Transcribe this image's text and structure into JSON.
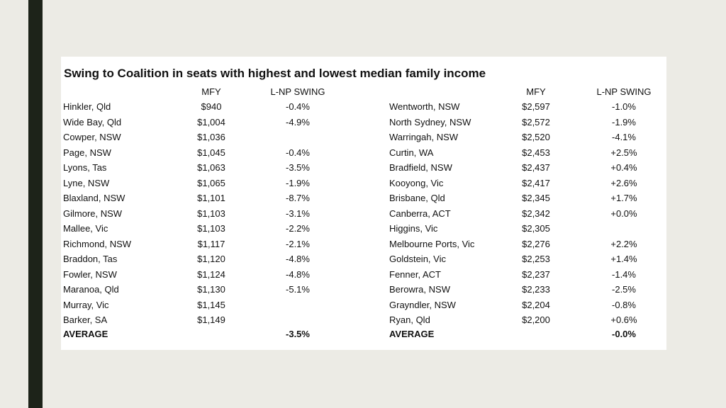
{
  "title": "Swing to Coalition in seats with highest and lowest median family income",
  "headers": {
    "left_mfy": "MFY",
    "left_swing": "L-NP SWING",
    "right_mfy": "MFY",
    "right_swing": "L-NP SWING"
  },
  "left_rows": [
    {
      "seat": "Hinkler, Qld",
      "mfy": "$940",
      "swing": "-0.4%"
    },
    {
      "seat": "Wide Bay, Qld",
      "mfy": "$1,004",
      "swing": "-4.9%"
    },
    {
      "seat": "Cowper, NSW",
      "mfy": "$1,036",
      "swing": ""
    },
    {
      "seat": "Page, NSW",
      "mfy": "$1,045",
      "swing": "-0.4%"
    },
    {
      "seat": "Lyons, Tas",
      "mfy": "$1,063",
      "swing": "-3.5%"
    },
    {
      "seat": "Lyne, NSW",
      "mfy": "$1,065",
      "swing": "-1.9%"
    },
    {
      "seat": "Blaxland, NSW",
      "mfy": "$1,101",
      "swing": "-8.7%"
    },
    {
      "seat": "Gilmore, NSW",
      "mfy": "$1,103",
      "swing": "-3.1%"
    },
    {
      "seat": "Mallee, Vic",
      "mfy": "$1,103",
      "swing": "-2.2%"
    },
    {
      "seat": "Richmond, NSW",
      "mfy": "$1,117",
      "swing": "-2.1%"
    },
    {
      "seat": "Braddon, Tas",
      "mfy": "$1,120",
      "swing": "-4.8%"
    },
    {
      "seat": "Fowler, NSW",
      "mfy": "$1,124",
      "swing": "-4.8%"
    },
    {
      "seat": "Maranoa, Qld",
      "mfy": "$1,130",
      "swing": "-5.1%"
    },
    {
      "seat": "Murray, Vic",
      "mfy": "$1,145",
      "swing": ""
    },
    {
      "seat": "Barker, SA",
      "mfy": "$1,149",
      "swing": ""
    }
  ],
  "left_average": {
    "label": "AVERAGE",
    "swing": "-3.5%"
  },
  "right_rows": [
    {
      "seat": "Wentworth, NSW",
      "mfy": "$2,597",
      "swing": "-1.0%"
    },
    {
      "seat": "North Sydney, NSW",
      "mfy": "$2,572",
      "swing": "-1.9%"
    },
    {
      "seat": "Warringah, NSW",
      "mfy": "$2,520",
      "swing": "-4.1%"
    },
    {
      "seat": "Curtin, WA",
      "mfy": "$2,453",
      "swing": "+2.5%"
    },
    {
      "seat": "Bradfield, NSW",
      "mfy": "$2,437",
      "swing": "+0.4%"
    },
    {
      "seat": "Kooyong, Vic",
      "mfy": "$2,417",
      "swing": "+2.6%"
    },
    {
      "seat": "Brisbane, Qld",
      "mfy": "$2,345",
      "swing": "+1.7%"
    },
    {
      "seat": "Canberra, ACT",
      "mfy": "$2,342",
      "swing": "+0.0%"
    },
    {
      "seat": "Higgins, Vic",
      "mfy": "$2,305",
      "swing": ""
    },
    {
      "seat": "Melbourne Ports, Vic",
      "mfy": "$2,276",
      "swing": "+2.2%"
    },
    {
      "seat": "Goldstein, Vic",
      "mfy": "$2,253",
      "swing": "+1.4%"
    },
    {
      "seat": "Fenner, ACT",
      "mfy": "$2,237",
      "swing": "-1.4%"
    },
    {
      "seat": "Berowra, NSW",
      "mfy": "$2,233",
      "swing": "-2.5%"
    },
    {
      "seat": "Grayndler, NSW",
      "mfy": "$2,204",
      "swing": "-0.8%"
    },
    {
      "seat": "Ryan, Qld",
      "mfy": "$2,200",
      "swing": "+0.6%"
    }
  ],
  "right_average": {
    "label": "AVERAGE",
    "swing": "-0.0%"
  }
}
